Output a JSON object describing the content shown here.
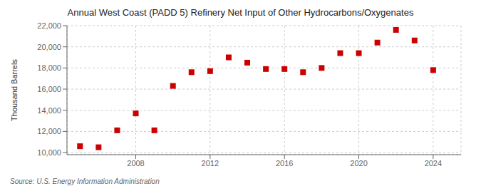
{
  "chart_data": {
    "type": "scatter",
    "title": "Annual West Coast (PADD 5) Refinery Net Input of Other Hydrocarbons/Oxygenates",
    "y_label": "Thousand Barrels",
    "annotations": [
      "Source: U.S. Energy Information Administration"
    ],
    "x": [
      2005,
      2006,
      2007,
      2008,
      2009,
      2010,
      2011,
      2012,
      2013,
      2014,
      2015,
      2016,
      2017,
      2018,
      2019,
      2020,
      2021,
      2022,
      2023,
      2024
    ],
    "values": [
      10600,
      10500,
      12100,
      13700,
      12100,
      16300,
      17600,
      17700,
      19000,
      18500,
      17900,
      17900,
      17600,
      18000,
      19400,
      19400,
      20400,
      21600,
      20600,
      17800
    ],
    "color": "#cc0000",
    "marker": "square",
    "xlim": [
      2004.3,
      2025.5
    ],
    "xticks": [
      2008,
      2012,
      2016,
      2020,
      2024
    ],
    "ylim": [
      9800,
      22000
    ],
    "yticks": [
      {
        "value": 10000,
        "label": "10,000"
      },
      {
        "value": 12000,
        "label": "12,000"
      },
      {
        "value": 14000,
        "label": "14,000"
      },
      {
        "value": 16000,
        "label": "16,000"
      },
      {
        "value": 18000,
        "label": "18,000"
      },
      {
        "value": 20000,
        "label": "20,000"
      },
      {
        "value": 22000,
        "label": "22,000"
      }
    ],
    "grid": true
  }
}
